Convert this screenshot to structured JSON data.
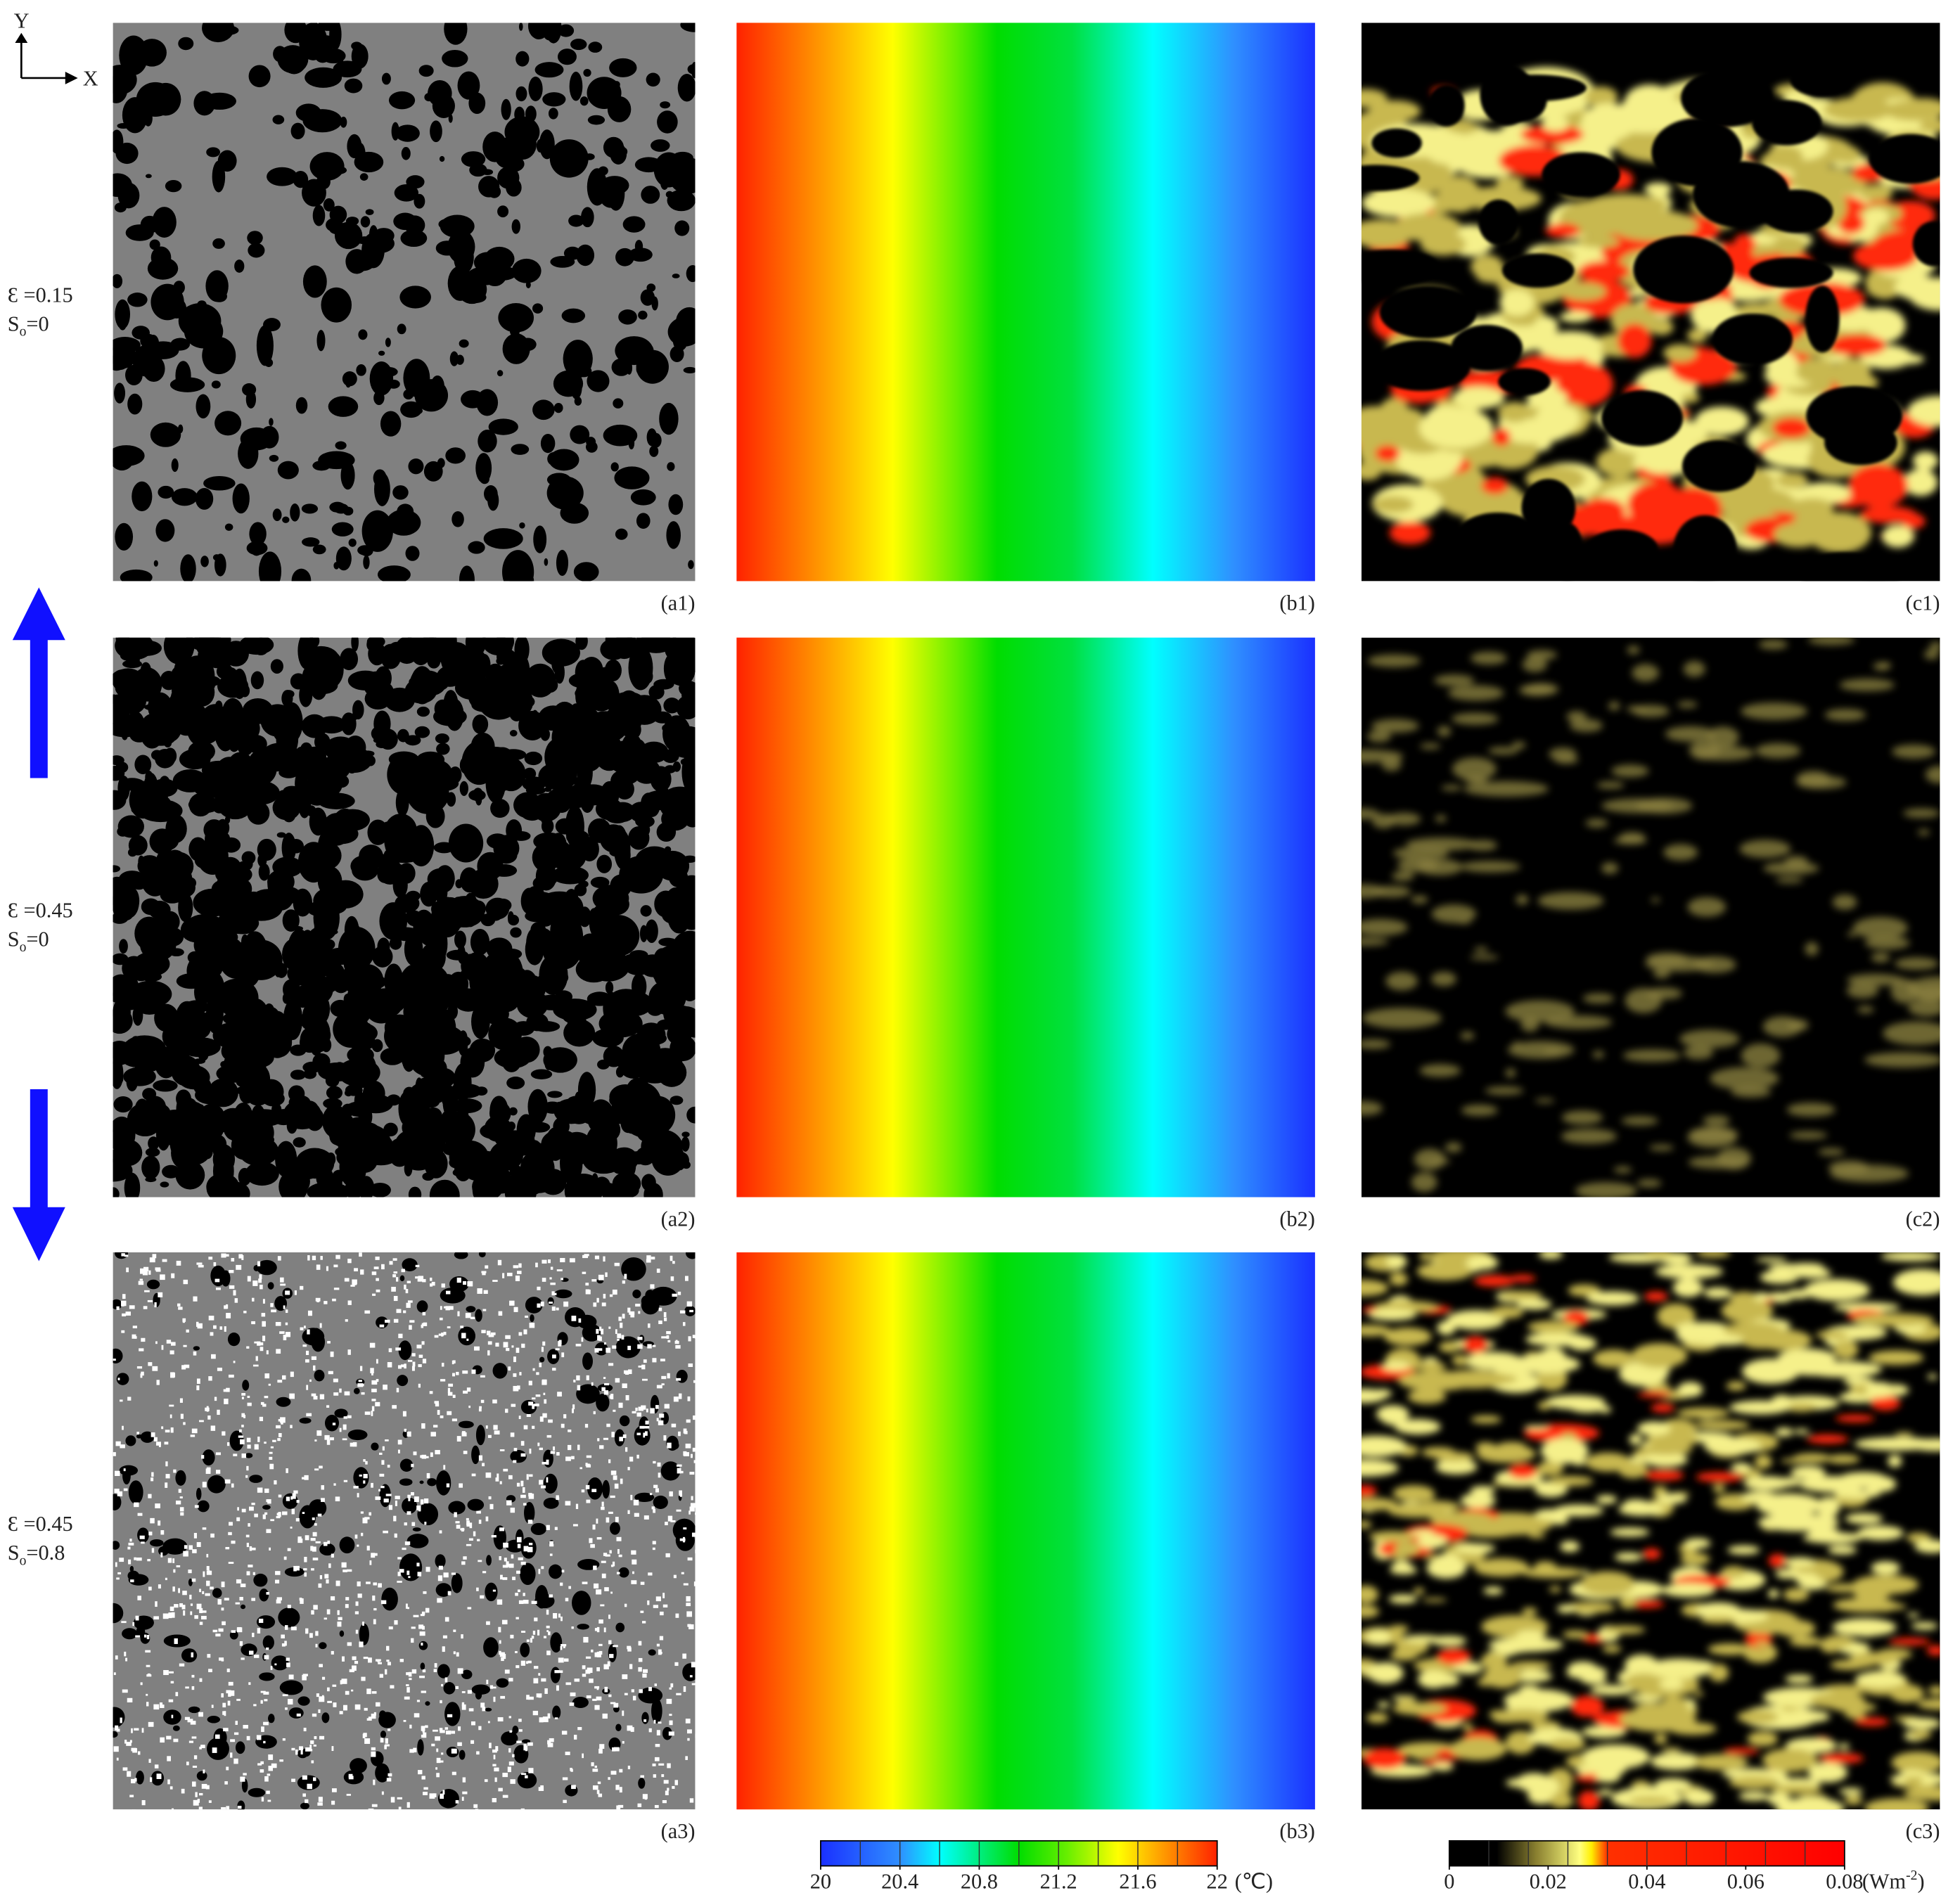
{
  "axes_icon": {
    "x": "X",
    "y": "Y"
  },
  "rows": [
    {
      "porosity": "Ɛ =0.15",
      "saturation_symbol": "S",
      "saturation_subscript": "o",
      "saturation_value": "=0",
      "panels": [
        "(a1)",
        "(b1)",
        "(c1)"
      ]
    },
    {
      "porosity": "Ɛ =0.45",
      "saturation_symbol": "S",
      "saturation_subscript": "o",
      "saturation_value": "=0",
      "panels": [
        "(a2)",
        "(b2)",
        "(c2)"
      ]
    },
    {
      "porosity": "Ɛ =0.45",
      "saturation_symbol": "S",
      "saturation_subscript": "o",
      "saturation_value": "=0.8",
      "panels": [
        "(a3)",
        "(b3)",
        "(c3)"
      ]
    }
  ],
  "temperature_colorbar": {
    "lim": [
      20,
      22
    ],
    "ticks": [
      20,
      20.4,
      20.8,
      21.2,
      21.6,
      22
    ],
    "unit": "(℃)"
  },
  "heat_flux_colorbar": {
    "lim": [
      0,
      0.08
    ],
    "ticks": [
      0,
      0.02,
      0.04,
      0.06,
      0.08
    ],
    "unit": "(Wm",
    "unit_superscript": "-2",
    "unit_close": ")"
  }
}
